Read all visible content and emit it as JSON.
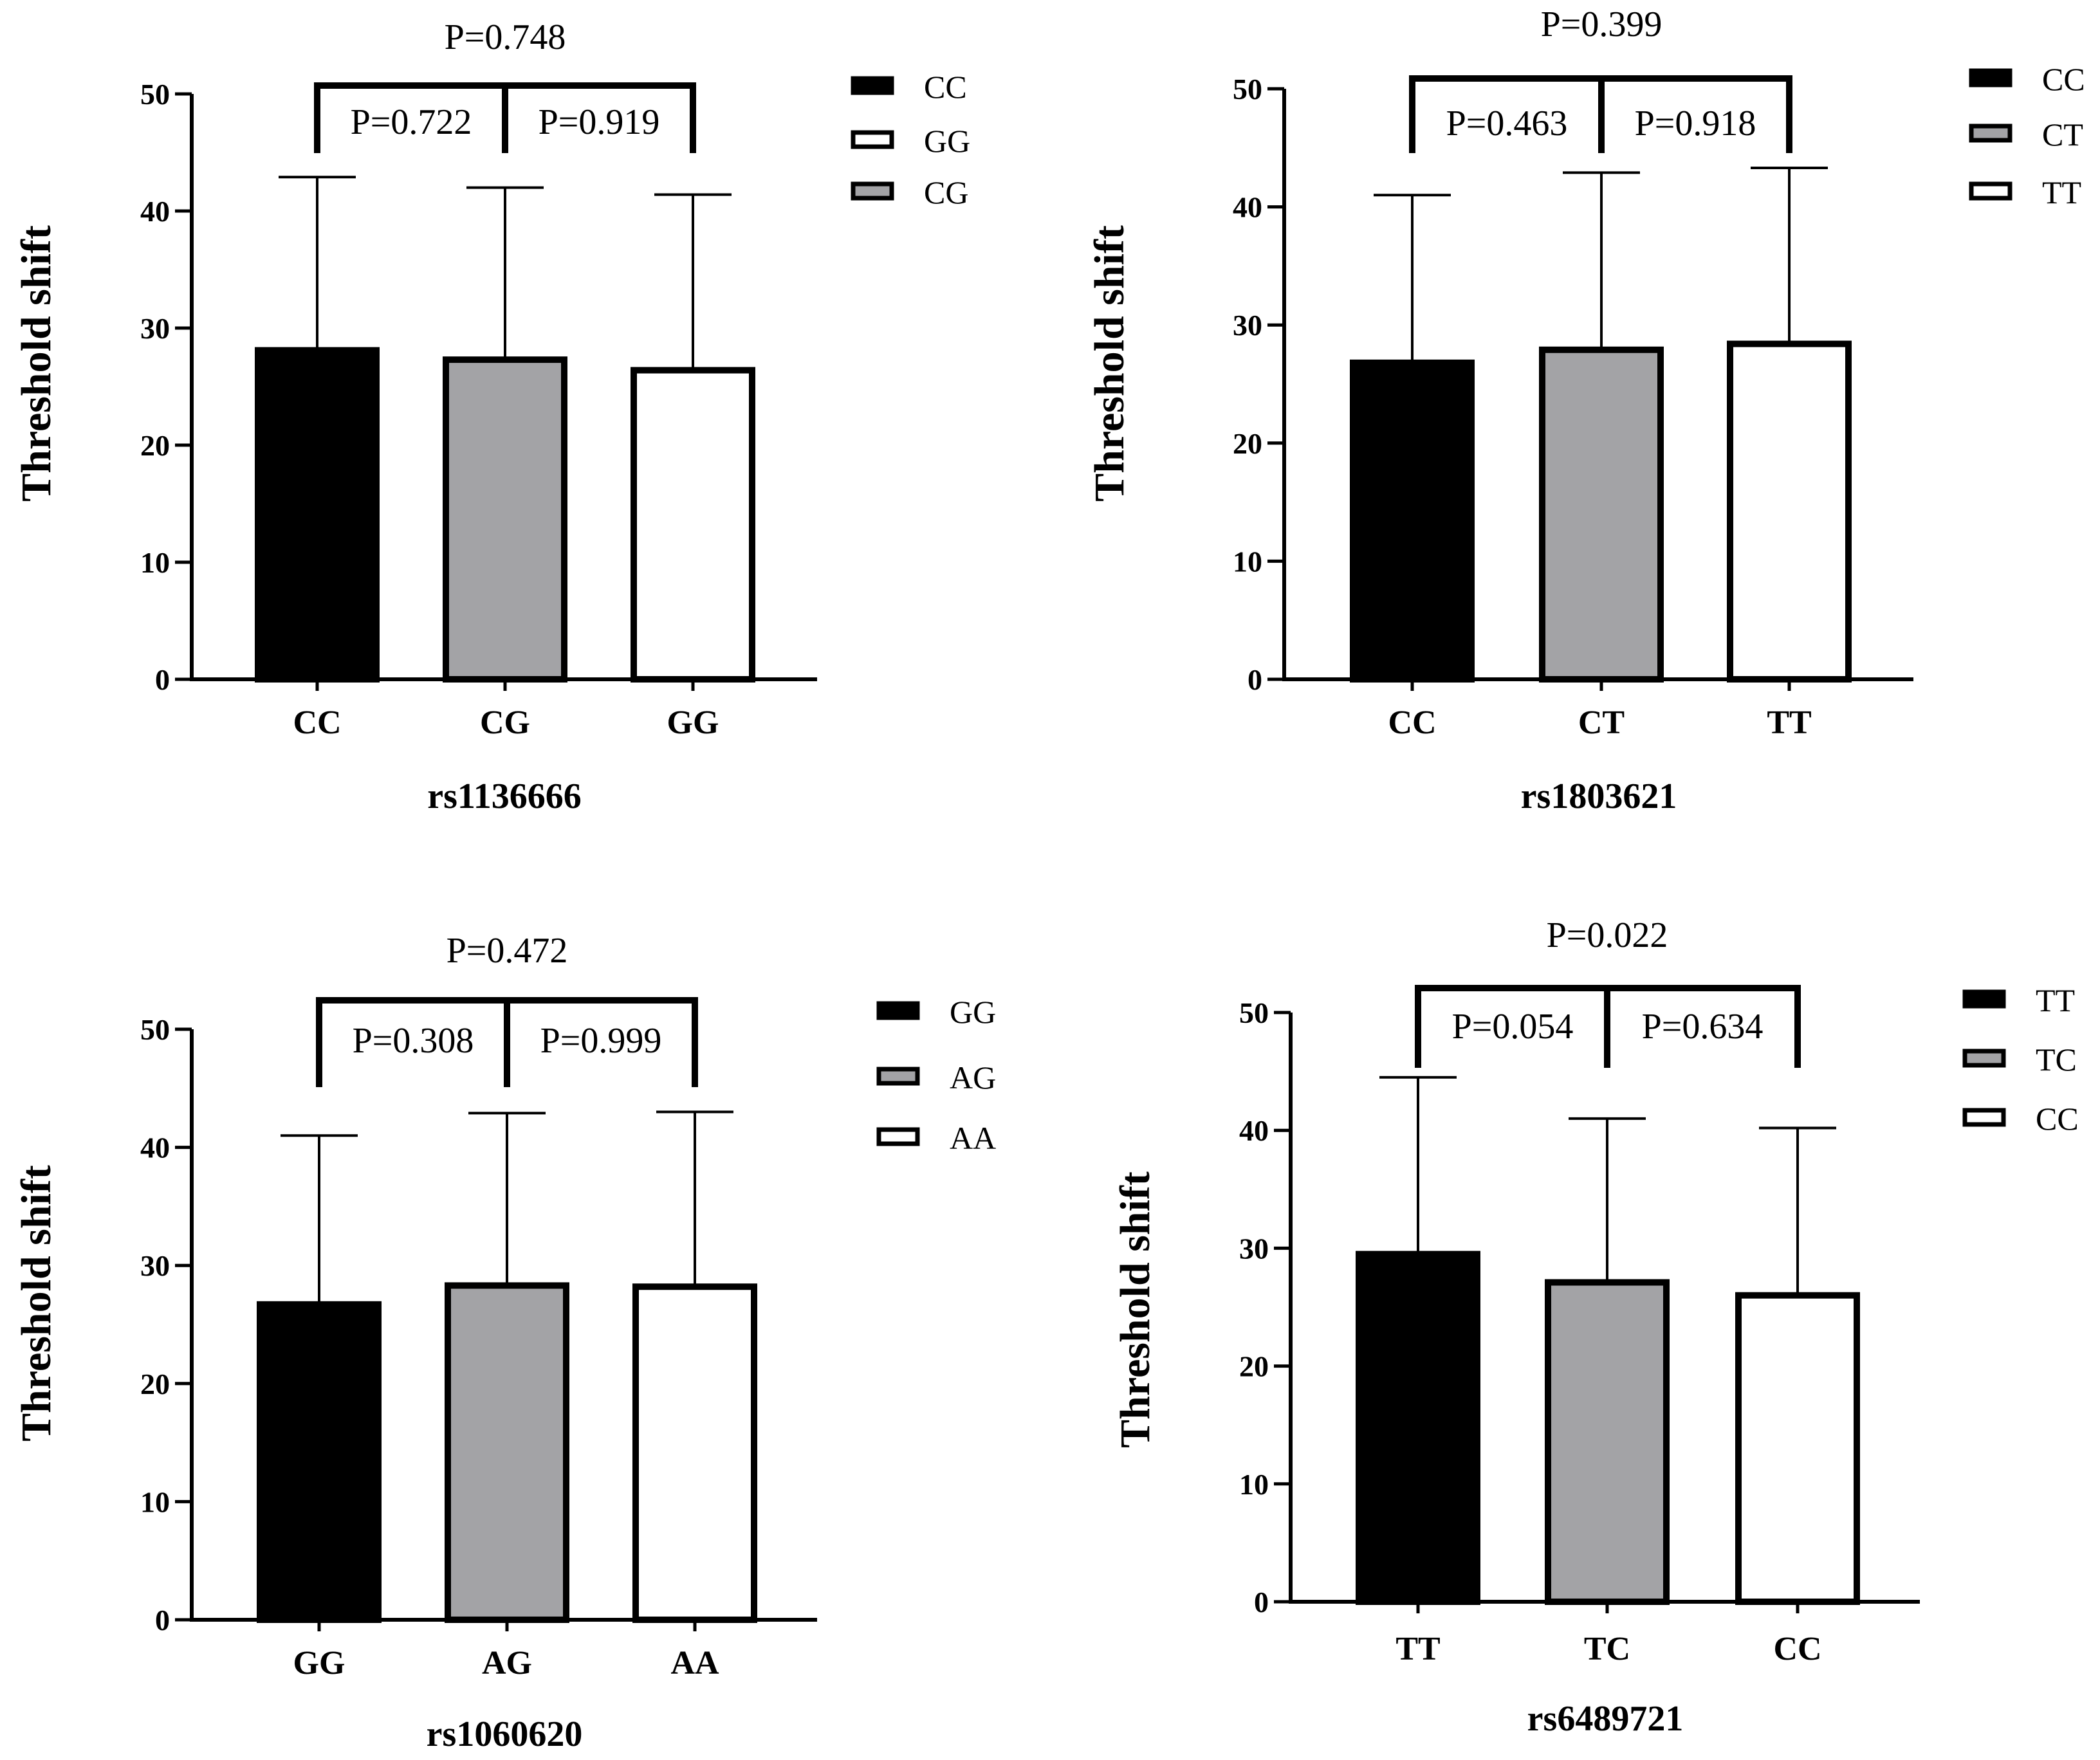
{
  "chart_data": [
    {
      "type": "bar",
      "xlabel": "rs1136666",
      "ylabel": "Threshold shift",
      "ylim": [
        0,
        50
      ],
      "yticks": [
        0,
        10,
        20,
        30,
        40,
        50
      ],
      "categories": [
        "CC",
        "CG",
        "GG"
      ],
      "values": [
        28.1,
        27.3,
        26.4
      ],
      "error_upper": [
        42.9,
        42.0,
        41.4
      ],
      "bar_colors": [
        "#000000",
        "#a3a3a6",
        "#ffffff"
      ],
      "comparisons": [
        {
          "from": 0,
          "to": 1,
          "label": "P=0.722"
        },
        {
          "from": 1,
          "to": 2,
          "label": "P=0.919"
        },
        {
          "from": 0,
          "to": 2,
          "label": "P=0.748"
        }
      ],
      "legend": [
        {
          "label": "CC",
          "color": "#000000"
        },
        {
          "label": "GG",
          "color": "#ffffff"
        },
        {
          "label": "CG",
          "color": "#a3a3a6"
        }
      ]
    },
    {
      "type": "bar",
      "xlabel": "rs1803621",
      "ylabel": "Threshold shift",
      "ylim": [
        0,
        50
      ],
      "yticks": [
        0,
        10,
        20,
        30,
        40,
        50
      ],
      "categories": [
        "CC",
        "CT",
        "TT"
      ],
      "values": [
        26.8,
        27.9,
        28.4
      ],
      "error_upper": [
        41.0,
        42.9,
        43.3
      ],
      "bar_colors": [
        "#000000",
        "#a3a3a6",
        "#ffffff"
      ],
      "comparisons": [
        {
          "from": 0,
          "to": 1,
          "label": "P=0.463"
        },
        {
          "from": 1,
          "to": 2,
          "label": "P=0.918"
        },
        {
          "from": 0,
          "to": 2,
          "label": "P=0.399"
        }
      ],
      "legend": [
        {
          "label": "CC",
          "color": "#000000"
        },
        {
          "label": "CT",
          "color": "#a3a3a6"
        },
        {
          "label": "TT",
          "color": "#ffffff"
        }
      ]
    },
    {
      "type": "bar",
      "xlabel": "rs1060620",
      "ylabel": "Threshold shift",
      "ylim": [
        0,
        50
      ],
      "yticks": [
        0,
        10,
        20,
        30,
        40,
        50
      ],
      "categories": [
        "GG",
        "AG",
        "AA"
      ],
      "values": [
        26.7,
        28.3,
        28.2
      ],
      "error_upper": [
        41.0,
        42.9,
        43.0
      ],
      "bar_colors": [
        "#000000",
        "#a3a3a6",
        "#ffffff"
      ],
      "comparisons": [
        {
          "from": 0,
          "to": 1,
          "label": "P=0.308"
        },
        {
          "from": 1,
          "to": 2,
          "label": "P=0.999"
        },
        {
          "from": 0,
          "to": 2,
          "label": "P=0.472"
        }
      ],
      "legend": [
        {
          "label": "GG",
          "color": "#000000"
        },
        {
          "label": "AG",
          "color": "#a3a3a6"
        },
        {
          "label": "AA",
          "color": "#ffffff"
        }
      ]
    },
    {
      "type": "bar",
      "xlabel": "rs6489721",
      "ylabel": "Threshold shift",
      "ylim": [
        0,
        50
      ],
      "yticks": [
        0,
        10,
        20,
        30,
        40,
        50
      ],
      "categories": [
        "TT",
        "TC",
        "CC"
      ],
      "values": [
        29.5,
        27.1,
        26.0
      ],
      "error_upper": [
        44.5,
        41.0,
        40.2
      ],
      "bar_colors": [
        "#000000",
        "#a3a3a6",
        "#ffffff"
      ],
      "comparisons": [
        {
          "from": 0,
          "to": 1,
          "label": "P=0.054"
        },
        {
          "from": 1,
          "to": 2,
          "label": "P=0.634"
        },
        {
          "from": 0,
          "to": 2,
          "label": "P=0.022"
        }
      ],
      "legend": [
        {
          "label": "TT",
          "color": "#000000"
        },
        {
          "label": "TC",
          "color": "#a3a3a6"
        },
        {
          "label": "CC",
          "color": "#ffffff"
        }
      ]
    }
  ]
}
